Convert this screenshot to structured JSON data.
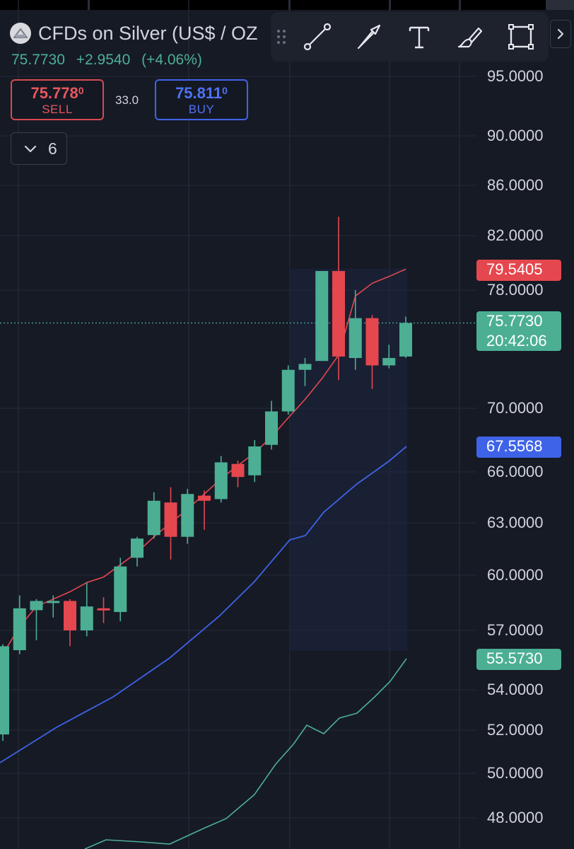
{
  "header": {
    "symbol_title": "CFDs on Silver (US$ / OZ",
    "last_price": "75.7730",
    "change": "+2.9540",
    "change_pct": "(+4.06%)"
  },
  "trade": {
    "sell_price_main": "75.778",
    "sell_price_sup": "0",
    "sell_label": "SELL",
    "spread": "33.0",
    "buy_price_main": "75.811",
    "buy_price_sup": "0",
    "buy_label": "BUY"
  },
  "indicators_toggle": {
    "count": "6"
  },
  "toolbar": {
    "tools": [
      "trend-line-icon",
      "arrow-icon",
      "text-icon",
      "brush-icon",
      "rectangle-icon"
    ]
  },
  "price_axis": {
    "labels": [
      "95.0000",
      "90.0000",
      "86.0000",
      "82.0000",
      "78.0000",
      "70.0000",
      "66.0000",
      "63.0000",
      "60.0000",
      "57.0000",
      "54.0000",
      "52.0000",
      "50.0000",
      "48.0000"
    ]
  },
  "badges": {
    "upper_band": "79.5405",
    "current_price": "75.7730",
    "countdown": "20:42:06",
    "middle_band": "67.5568",
    "lower_band": "55.5730"
  },
  "colors": {
    "background": "#161a25",
    "up": "#4caf93",
    "down": "#e5474f",
    "upper_line": "#e5474f",
    "middle_line": "#3f63e8",
    "lower_line": "#4caf93",
    "grid": "#262b36"
  },
  "chart_data": {
    "type": "candlestick",
    "ylim": [
      47.0,
      97.0
    ],
    "current_price": 75.773,
    "candles": [
      {
        "o": 51.8,
        "h": 56.3,
        "l": 51.5,
        "c": 56.2
      },
      {
        "o": 56.0,
        "h": 58.9,
        "l": 55.8,
        "c": 58.2
      },
      {
        "o": 58.1,
        "h": 58.7,
        "l": 56.5,
        "c": 58.6
      },
      {
        "o": 58.5,
        "h": 58.9,
        "l": 57.7,
        "c": 58.6
      },
      {
        "o": 58.6,
        "h": 58.7,
        "l": 56.2,
        "c": 57.0
      },
      {
        "o": 57.0,
        "h": 59.6,
        "l": 56.7,
        "c": 58.3
      },
      {
        "o": 58.2,
        "h": 58.8,
        "l": 57.4,
        "c": 58.1
      },
      {
        "o": 58.0,
        "h": 61.0,
        "l": 57.5,
        "c": 60.5
      },
      {
        "o": 61.0,
        "h": 62.2,
        "l": 60.5,
        "c": 62.1
      },
      {
        "o": 62.3,
        "h": 64.8,
        "l": 62.1,
        "c": 64.3
      },
      {
        "o": 64.2,
        "h": 65.1,
        "l": 60.9,
        "c": 62.2
      },
      {
        "o": 62.2,
        "h": 65.0,
        "l": 61.8,
        "c": 64.7
      },
      {
        "o": 64.6,
        "h": 64.9,
        "l": 62.6,
        "c": 64.3
      },
      {
        "o": 64.4,
        "h": 67.0,
        "l": 64.2,
        "c": 66.6
      },
      {
        "o": 66.5,
        "h": 66.7,
        "l": 65.1,
        "c": 65.7
      },
      {
        "o": 65.8,
        "h": 68.0,
        "l": 65.4,
        "c": 67.6
      },
      {
        "o": 67.7,
        "h": 70.5,
        "l": 67.4,
        "c": 69.8
      },
      {
        "o": 69.8,
        "h": 72.9,
        "l": 69.6,
        "c": 72.6
      },
      {
        "o": 72.6,
        "h": 73.4,
        "l": 71.5,
        "c": 73.0
      },
      {
        "o": 73.2,
        "h": 79.4,
        "l": 73.2,
        "c": 79.4
      },
      {
        "o": 79.4,
        "h": 83.5,
        "l": 71.9,
        "c": 73.5
      },
      {
        "o": 73.4,
        "h": 78.0,
        "l": 72.6,
        "c": 76.1
      },
      {
        "o": 76.1,
        "h": 76.3,
        "l": 71.3,
        "c": 72.9
      },
      {
        "o": 72.9,
        "h": 74.3,
        "l": 72.7,
        "c": 73.4
      },
      {
        "o": 73.5,
        "h": 76.2,
        "l": 73.4,
        "c": 75.773
      }
    ],
    "upper_band": [
      55.8,
      57.2,
      58.3,
      58.7,
      59.1,
      59.6,
      59.9,
      60.6,
      61.3,
      62.2,
      63.0,
      63.8,
      64.7,
      65.6,
      66.4,
      67.2,
      68.2,
      69.4,
      70.6,
      72.0,
      73.6,
      77.6,
      78.5,
      79.0,
      79.54
    ]
  }
}
